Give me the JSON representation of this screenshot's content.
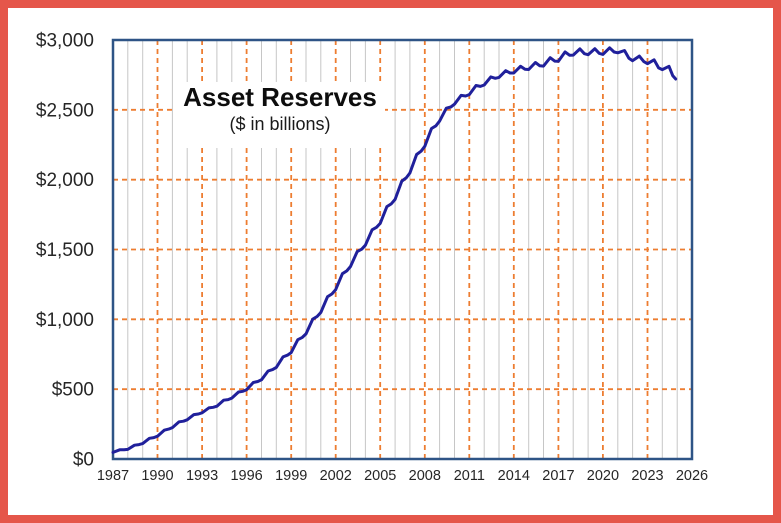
{
  "frame": {
    "border_color": "#e5564a",
    "background_color": "#ffffff"
  },
  "chart_data": {
    "type": "line",
    "title": "Asset Reserves",
    "subtitle": "($ in billions)",
    "xlabel": "",
    "ylabel": "",
    "x_axis": {
      "min": 1987,
      "max": 2026,
      "tick_step": 3,
      "minor_gridline_step": 1,
      "tick_labels": [
        "1987",
        "1990",
        "1993",
        "1996",
        "1999",
        "2002",
        "2005",
        "2008",
        "2011",
        "2014",
        "2017",
        "2020",
        "2023",
        "2026"
      ]
    },
    "y_axis": {
      "min": 0,
      "max": 3000,
      "tick_step": 500,
      "tick_labels": [
        "$0",
        "$500",
        "$1,000",
        "$1,500",
        "$2,000",
        "$2,500",
        "$3,000"
      ]
    },
    "gridlines": {
      "major_color": "#ed7d31",
      "major_style": "dashed",
      "minor_color": "#c6c6c6",
      "minor_style": "solid"
    },
    "plot_border_color": "#2e5486",
    "label_color": "#262626",
    "legend": "none",
    "series": [
      {
        "name": "Asset Reserves ($ in billions)",
        "color": "#20209b",
        "points": [
          [
            1987.0,
            47
          ],
          [
            1987.45,
            66
          ],
          [
            1987.75,
            66
          ],
          [
            1988.0,
            69
          ],
          [
            1988.45,
            99
          ],
          [
            1988.75,
            103
          ],
          [
            1989.0,
            110
          ],
          [
            1989.45,
            148
          ],
          [
            1989.75,
            153
          ],
          [
            1990.0,
            163
          ],
          [
            1990.45,
            206
          ],
          [
            1990.75,
            214
          ],
          [
            1991.0,
            225
          ],
          [
            1991.45,
            266
          ],
          [
            1991.75,
            271
          ],
          [
            1992.0,
            281
          ],
          [
            1992.45,
            318
          ],
          [
            1992.75,
            322
          ],
          [
            1993.0,
            331
          ],
          [
            1993.45,
            366
          ],
          [
            1993.75,
            370
          ],
          [
            1994.0,
            378
          ],
          [
            1994.45,
            421
          ],
          [
            1994.75,
            425
          ],
          [
            1995.0,
            436
          ],
          [
            1995.45,
            480
          ],
          [
            1995.75,
            485
          ],
          [
            1996.0,
            496
          ],
          [
            1996.45,
            548
          ],
          [
            1996.75,
            555
          ],
          [
            1997.0,
            567
          ],
          [
            1997.45,
            630
          ],
          [
            1997.75,
            640
          ],
          [
            1998.0,
            656
          ],
          [
            1998.45,
            731
          ],
          [
            1998.75,
            743
          ],
          [
            1999.0,
            762
          ],
          [
            1999.45,
            854
          ],
          [
            1999.75,
            871
          ],
          [
            2000.0,
            896
          ],
          [
            2000.45,
            1001
          ],
          [
            2000.75,
            1020
          ],
          [
            2001.0,
            1049
          ],
          [
            2001.45,
            1161
          ],
          [
            2001.75,
            1182
          ],
          [
            2002.0,
            1213
          ],
          [
            2002.45,
            1327
          ],
          [
            2002.75,
            1347
          ],
          [
            2003.0,
            1378
          ],
          [
            2003.45,
            1485
          ],
          [
            2003.75,
            1502
          ],
          [
            2004.0,
            1531
          ],
          [
            2004.45,
            1641
          ],
          [
            2004.75,
            1659
          ],
          [
            2005.0,
            1687
          ],
          [
            2005.45,
            1807
          ],
          [
            2005.75,
            1828
          ],
          [
            2006.0,
            1859
          ],
          [
            2006.45,
            1990
          ],
          [
            2006.75,
            2013
          ],
          [
            2007.0,
            2048
          ],
          [
            2007.45,
            2180
          ],
          [
            2007.75,
            2204
          ],
          [
            2008.0,
            2239
          ],
          [
            2008.45,
            2366
          ],
          [
            2008.75,
            2386
          ],
          [
            2009.0,
            2419
          ],
          [
            2009.45,
            2512
          ],
          [
            2009.75,
            2520
          ],
          [
            2010.0,
            2540
          ],
          [
            2010.45,
            2603
          ],
          [
            2010.75,
            2599
          ],
          [
            2011.0,
            2609
          ],
          [
            2011.45,
            2674
          ],
          [
            2011.75,
            2668
          ],
          [
            2012.0,
            2678
          ],
          [
            2012.45,
            2736
          ],
          [
            2012.75,
            2726
          ],
          [
            2013.0,
            2732
          ],
          [
            2013.45,
            2780
          ],
          [
            2013.75,
            2764
          ],
          [
            2014.0,
            2764
          ],
          [
            2014.45,
            2812
          ],
          [
            2014.75,
            2790
          ],
          [
            2015.0,
            2789
          ],
          [
            2015.45,
            2839
          ],
          [
            2015.75,
            2815
          ],
          [
            2016.0,
            2813
          ],
          [
            2016.45,
            2873
          ],
          [
            2016.75,
            2849
          ],
          [
            2017.0,
            2848
          ],
          [
            2017.45,
            2915
          ],
          [
            2017.75,
            2891
          ],
          [
            2018.0,
            2892
          ],
          [
            2018.45,
            2936
          ],
          [
            2018.75,
            2902
          ],
          [
            2019.0,
            2895
          ],
          [
            2019.45,
            2938
          ],
          [
            2019.75,
            2905
          ],
          [
            2020.0,
            2897
          ],
          [
            2020.45,
            2944
          ],
          [
            2020.75,
            2914
          ],
          [
            2021.0,
            2908
          ],
          [
            2021.45,
            2925
          ],
          [
            2021.75,
            2870
          ],
          [
            2022.0,
            2852
          ],
          [
            2022.45,
            2885
          ],
          [
            2022.75,
            2845
          ],
          [
            2023.0,
            2830
          ],
          [
            2023.45,
            2858
          ],
          [
            2023.75,
            2800
          ],
          [
            2024.0,
            2788
          ],
          [
            2024.45,
            2812
          ],
          [
            2024.7,
            2745
          ],
          [
            2024.9,
            2721
          ]
        ]
      }
    ]
  }
}
